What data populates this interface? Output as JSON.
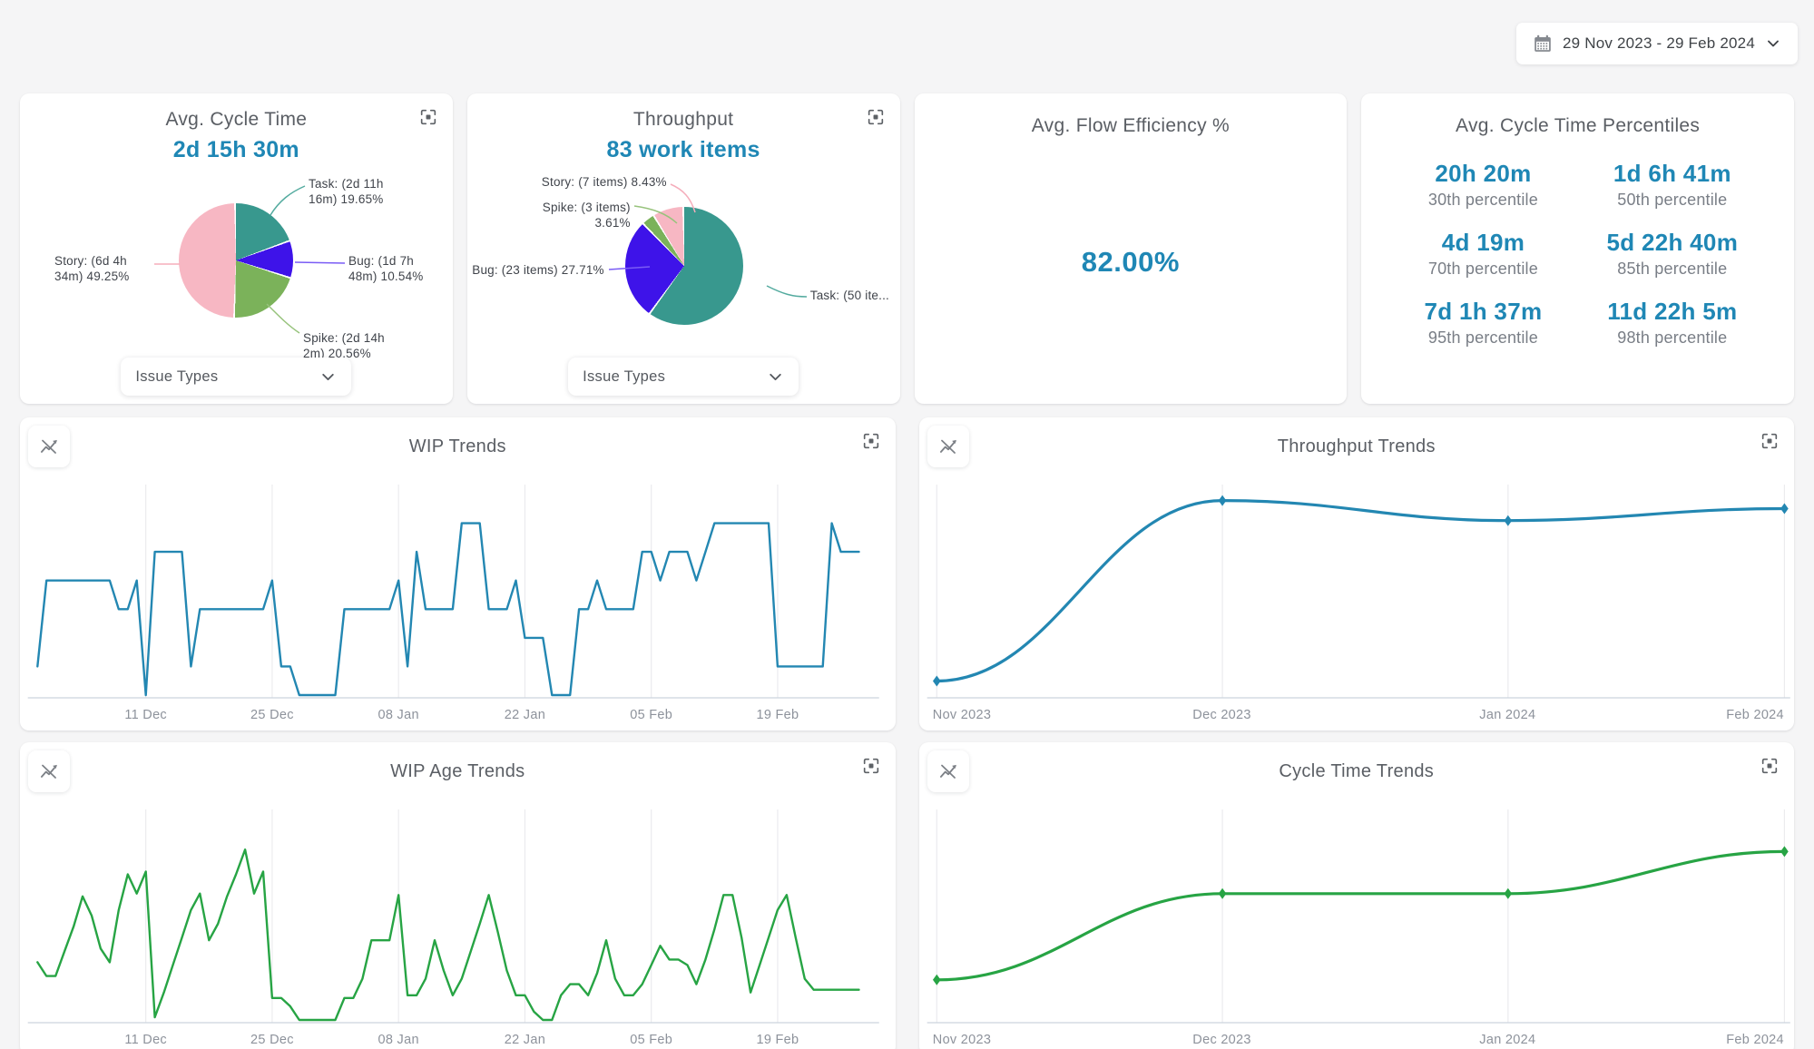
{
  "date_picker": {
    "label": "29 Nov 2023 - 29 Feb 2024"
  },
  "colors": {
    "accent_blue": "#1f87b5",
    "line_blue": "#2387b2",
    "line_green": "#27a444",
    "pie_teal": "#38988e",
    "pie_violet": "#3e13e9",
    "pie_green": "#7bb25a",
    "pie_pink": "#f7b7c3"
  },
  "cards": {
    "avg_cycle_time": {
      "title": "Avg. Cycle Time",
      "value": "2d 15h 30m",
      "filter_label": "Issue Types"
    },
    "throughput": {
      "title": "Throughput",
      "value": "83 work items",
      "filter_label": "Issue Types"
    },
    "flow_efficiency": {
      "title": "Avg. Flow Efficiency %",
      "value": "82.00%"
    },
    "percentiles": {
      "title": "Avg. Cycle Time Percentiles",
      "items": [
        {
          "value": "20h 20m",
          "label": "30th percentile"
        },
        {
          "value": "1d 6h 41m",
          "label": "50th percentile"
        },
        {
          "value": "4d 19m",
          "label": "70th percentile"
        },
        {
          "value": "5d 22h 40m",
          "label": "85th percentile"
        },
        {
          "value": "7d 1h 37m",
          "label": "95th percentile"
        },
        {
          "value": "11d 22h 5m",
          "label": "98th percentile"
        }
      ]
    },
    "wip_trends": {
      "title": "WIP Trends"
    },
    "throughput_trends": {
      "title": "Throughput Trends"
    },
    "wip_age_trends": {
      "title": "WIP Age Trends"
    },
    "cycle_time_trends": {
      "title": "Cycle Time Trends"
    }
  },
  "chart_data": [
    {
      "id": "avg_cycle_time_pie",
      "type": "pie",
      "title": "Avg. Cycle Time",
      "slices": [
        {
          "name": "Task",
          "time": "2d 11h 16m",
          "pct": 19.65,
          "color": "#38988e",
          "leader": "#54ab9f"
        },
        {
          "name": "Bug",
          "time": "1d 7h 48m",
          "pct": 10.54,
          "color": "#3e13e9",
          "leader": "#7a5cf5"
        },
        {
          "name": "Spike",
          "time": "2d 14h 2m",
          "pct": 20.56,
          "color": "#7bb25a",
          "leader": "#97c37c"
        },
        {
          "name": "Story",
          "time": "6d 4h 34m",
          "pct": 49.25,
          "color": "#f7b7c3",
          "leader": "#f5adbb"
        }
      ],
      "labels": [
        "Task: (2d 11h 16m) 19.65%",
        "Bug: (1d 7h 48m) 10.54%",
        "Spike: (2d 14h 2m) 20.56%",
        "Story: (6d 4h 34m) 49.25%"
      ]
    },
    {
      "id": "throughput_pie",
      "type": "pie",
      "title": "Throughput",
      "slices": [
        {
          "name": "Task",
          "items": 50,
          "pct": 60.24,
          "color": "#38988e",
          "leader": "#54ab9f"
        },
        {
          "name": "Bug",
          "items": 23,
          "pct": 27.71,
          "color": "#3e13e9",
          "leader": "#7a5cf5"
        },
        {
          "name": "Spike",
          "items": 3,
          "pct": 3.61,
          "color": "#7bb25a",
          "leader": "#97c37c"
        },
        {
          "name": "Story",
          "items": 7,
          "pct": 8.43,
          "color": "#f7b7c3",
          "leader": "#f5adbb"
        }
      ],
      "labels": [
        "Story: (7 items) 8.43%",
        "Spike: (3 items) 3.61%",
        "Bug: (23 items) 27.71%",
        "Task: (50 ite..."
      ]
    },
    {
      "id": "wip_trends",
      "type": "line",
      "title": "WIP Trends",
      "color": "#2387b2",
      "smooth": false,
      "markers": false,
      "ymax": 7,
      "domain": 91,
      "pad": [
        0.02,
        0.042
      ],
      "grid": true,
      "ticks": [
        {
          "label": "11 Dec",
          "day": 12
        },
        {
          "label": "25 Dec",
          "day": 26
        },
        {
          "label": "08 Jan",
          "day": 40
        },
        {
          "label": "22 Jan",
          "day": 54
        },
        {
          "label": "05 Feb",
          "day": 68
        },
        {
          "label": "19 Feb",
          "day": 82
        }
      ],
      "values": [
        1,
        4,
        4,
        4,
        4,
        4,
        4,
        4,
        4,
        3,
        3,
        4,
        0,
        5,
        5,
        5,
        5,
        1,
        3,
        3,
        3,
        3,
        3,
        3,
        3,
        3,
        4,
        1,
        1,
        0,
        0,
        0,
        0,
        0,
        3,
        3,
        3,
        3,
        3,
        3,
        4,
        1,
        5,
        3,
        3,
        3,
        3,
        6,
        6,
        6,
        3,
        3,
        3,
        4,
        2,
        2,
        2,
        0,
        0,
        0,
        3,
        3,
        4,
        3,
        3,
        3,
        3,
        5,
        5,
        4,
        5,
        5,
        5,
        4,
        5,
        6,
        6,
        6,
        6,
        6,
        6,
        6,
        1,
        1,
        1,
        1,
        1,
        1,
        6,
        5,
        5,
        5
      ]
    },
    {
      "id": "throughput_trends",
      "type": "line",
      "title": "Throughput Trends",
      "color": "#2387b2",
      "smooth": true,
      "markers": true,
      "ymax": 1,
      "domain": 92,
      "pad": [
        0.02,
        0.012
      ],
      "grid": true,
      "x_days": [
        0,
        31,
        62,
        92
      ],
      "ticks": [
        {
          "label": "Nov 2023",
          "day": 0
        },
        {
          "label": "Dec 2023",
          "day": 31
        },
        {
          "label": "Jan 2024",
          "day": 62
        },
        {
          "label": "Feb 2024",
          "day": 92
        }
      ],
      "values": [
        0.07,
        0.97,
        0.87,
        0.93
      ]
    },
    {
      "id": "wip_age_trends",
      "type": "line",
      "title": "WIP Age Trends",
      "color": "#27a444",
      "smooth": false,
      "markers": false,
      "ymax": 7.3,
      "domain": 91,
      "pad": [
        0.02,
        0.042
      ],
      "grid": true,
      "ticks": [
        {
          "label": "11 Dec",
          "day": 12
        },
        {
          "label": "25 Dec",
          "day": 26
        },
        {
          "label": "08 Jan",
          "day": 40
        },
        {
          "label": "22 Jan",
          "day": 54
        },
        {
          "label": "05 Feb",
          "day": 68
        },
        {
          "label": "19 Feb",
          "day": 82
        }
      ],
      "values": [
        2.1,
        1.6,
        1.6,
        2.5,
        3.4,
        4.5,
        3.8,
        2.6,
        2.1,
        4.0,
        5.3,
        4.6,
        5.4,
        0.1,
        1.0,
        2.0,
        3.0,
        4.0,
        4.6,
        2.9,
        3.5,
        4.5,
        5.3,
        6.2,
        4.6,
        5.4,
        0.8,
        0.8,
        0.5,
        0,
        0,
        0,
        0,
        0,
        0.8,
        0.8,
        1.5,
        2.9,
        2.9,
        2.9,
        4.55,
        0.9,
        0.9,
        1.5,
        2.9,
        1.8,
        0.9,
        1.5,
        2.5,
        3.5,
        4.55,
        3.2,
        1.8,
        0.9,
        0.9,
        0.3,
        0,
        0,
        0.9,
        1.3,
        1.3,
        0.9,
        1.7,
        2.9,
        1.5,
        0.9,
        0.9,
        1.3,
        2.0,
        2.7,
        2.2,
        2.2,
        2.0,
        1.3,
        2.2,
        3.3,
        4.55,
        4.55,
        3.0,
        1.0,
        2.0,
        3.0,
        4.0,
        4.55,
        3.0,
        1.5,
        1.1,
        1.1,
        1.1,
        1.1,
        1.1,
        1.1
      ]
    },
    {
      "id": "cycle_time_trends",
      "type": "line",
      "title": "Cycle Time Trends",
      "color": "#27a444",
      "smooth": true,
      "markers": true,
      "ymax": 1,
      "domain": 92,
      "pad": [
        0.02,
        0.012
      ],
      "grid": true,
      "x_days": [
        0,
        31,
        62,
        92
      ],
      "ticks": [
        {
          "label": "Nov 2023",
          "day": 0
        },
        {
          "label": "Dec 2023",
          "day": 31
        },
        {
          "label": "Jan 2024",
          "day": 62
        },
        {
          "label": "Feb 2024",
          "day": 92
        }
      ],
      "values": [
        0.2,
        0.63,
        0.63,
        0.84
      ]
    }
  ]
}
